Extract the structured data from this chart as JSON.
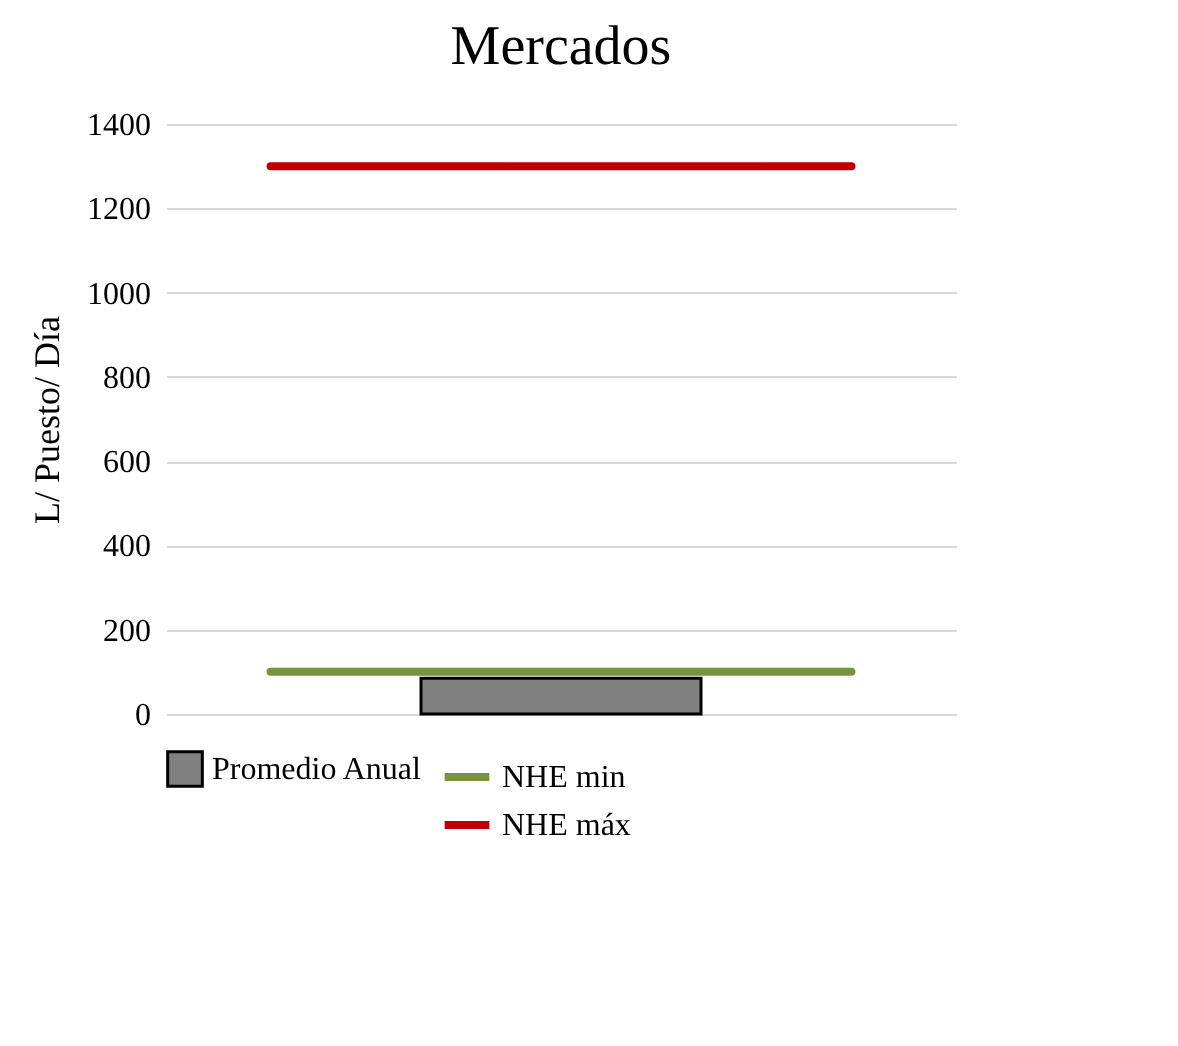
{
  "chart_data": {
    "type": "bar",
    "title": "Mercados",
    "ylabel": "L/ Puesto/ Día",
    "categories": [
      null
    ],
    "series": [
      {
        "name": "Promedio Anual",
        "color": "#808080",
        "values": [
          85
        ]
      }
    ],
    "ref_lines": [
      {
        "axis": "y",
        "value": 100,
        "label": "NHE min",
        "color": "#77933c"
      },
      {
        "axis": "y",
        "value": 1300,
        "label": "NHE máx",
        "color": "#c00000"
      }
    ],
    "ylim": [
      0,
      1400
    ],
    "yticks": [
      0,
      200,
      400,
      600,
      800,
      1000,
      1200,
      1400
    ],
    "grid": "y",
    "legend": "bottom"
  }
}
